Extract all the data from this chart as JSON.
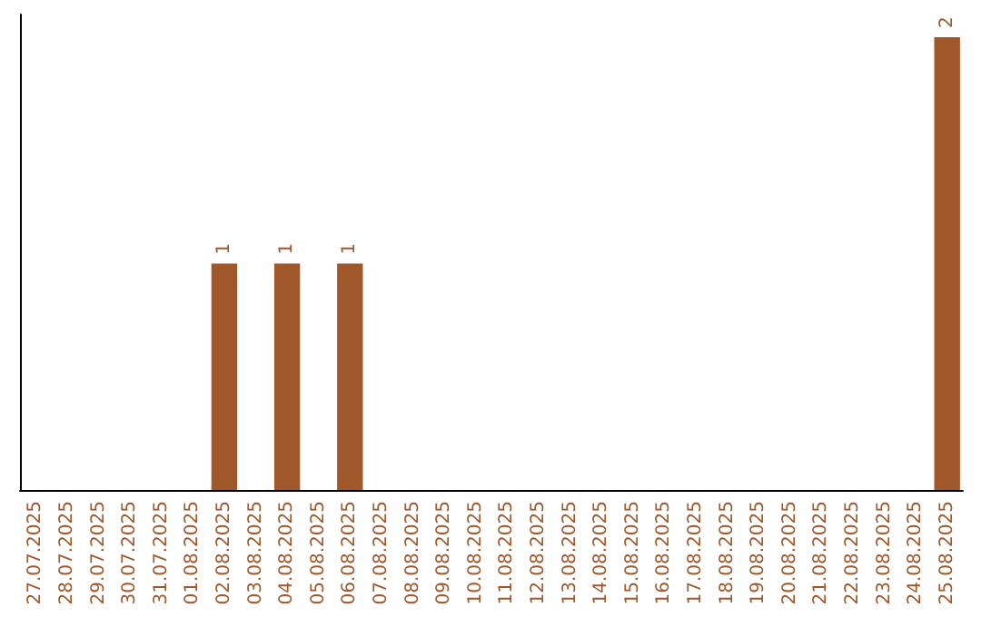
{
  "chart_data": {
    "type": "bar",
    "categories": [
      "27.07.2025",
      "28.07.2025",
      "29.07.2025",
      "30.07.2025",
      "31.07.2025",
      "01.08.2025",
      "02.08.2025",
      "03.08.2025",
      "04.08.2025",
      "05.08.2025",
      "06.08.2025",
      "07.08.2025",
      "08.08.2025",
      "09.08.2025",
      "10.08.2025",
      "11.08.2025",
      "12.08.2025",
      "13.08.2025",
      "14.08.2025",
      "15.08.2025",
      "16.08.2025",
      "17.08.2025",
      "18.08.2025",
      "19.08.2025",
      "20.08.2025",
      "21.08.2025",
      "22.08.2025",
      "23.08.2025",
      "24.08.2025",
      "25.08.2025"
    ],
    "values": [
      0,
      0,
      0,
      0,
      0,
      0,
      1,
      0,
      1,
      0,
      1,
      0,
      0,
      0,
      0,
      0,
      0,
      0,
      0,
      0,
      0,
      0,
      0,
      0,
      0,
      0,
      0,
      0,
      0,
      2
    ],
    "value_labels": [
      null,
      null,
      null,
      null,
      null,
      null,
      "1",
      null,
      "1",
      null,
      "1",
      null,
      null,
      null,
      null,
      null,
      null,
      null,
      null,
      null,
      null,
      null,
      null,
      null,
      null,
      null,
      null,
      null,
      null,
      "2"
    ],
    "color": "#a0582b",
    "ylim": [
      0,
      2.1
    ],
    "tick_labels": "x",
    "grid": false
  }
}
